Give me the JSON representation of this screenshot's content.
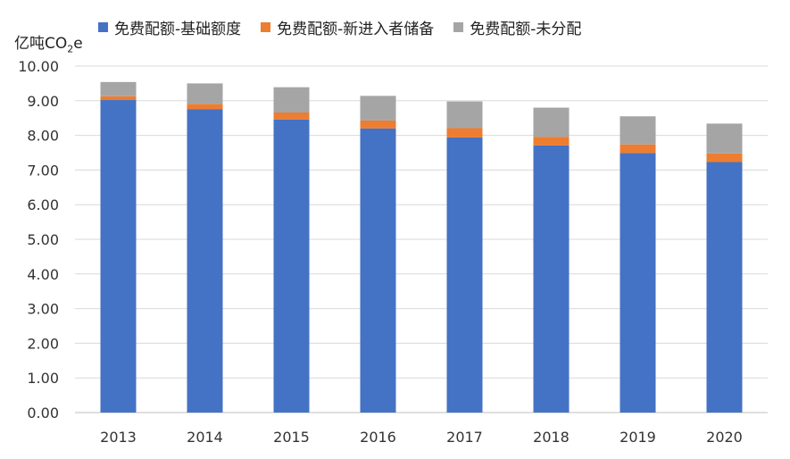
{
  "chart_data": {
    "type": "bar",
    "stacked": true,
    "unit_label": {
      "main": "亿吨CO",
      "sub": "2",
      "suffix": "e"
    },
    "categories": [
      "2013",
      "2014",
      "2015",
      "2016",
      "2017",
      "2018",
      "2019",
      "2020"
    ],
    "series": [
      {
        "name": "免费配额-基础额度",
        "color": "#4472C4",
        "values": [
          9.02,
          8.75,
          8.46,
          8.2,
          7.94,
          7.71,
          7.49,
          7.23
        ]
      },
      {
        "name": "免费配额-新进入者储备",
        "color": "#ED7D31",
        "values": [
          0.11,
          0.16,
          0.2,
          0.23,
          0.27,
          0.25,
          0.25,
          0.25
        ]
      },
      {
        "name": "免费配额-未分配",
        "color": "#A5A5A5",
        "values": [
          0.41,
          0.59,
          0.73,
          0.71,
          0.77,
          0.84,
          0.81,
          0.86
        ]
      }
    ],
    "yticks": [
      "0.00",
      "1.00",
      "2.00",
      "3.00",
      "4.00",
      "5.00",
      "6.00",
      "7.00",
      "8.00",
      "9.00",
      "10.00"
    ],
    "ylim": [
      0,
      10
    ],
    "grid": true,
    "legend_position": "top"
  }
}
